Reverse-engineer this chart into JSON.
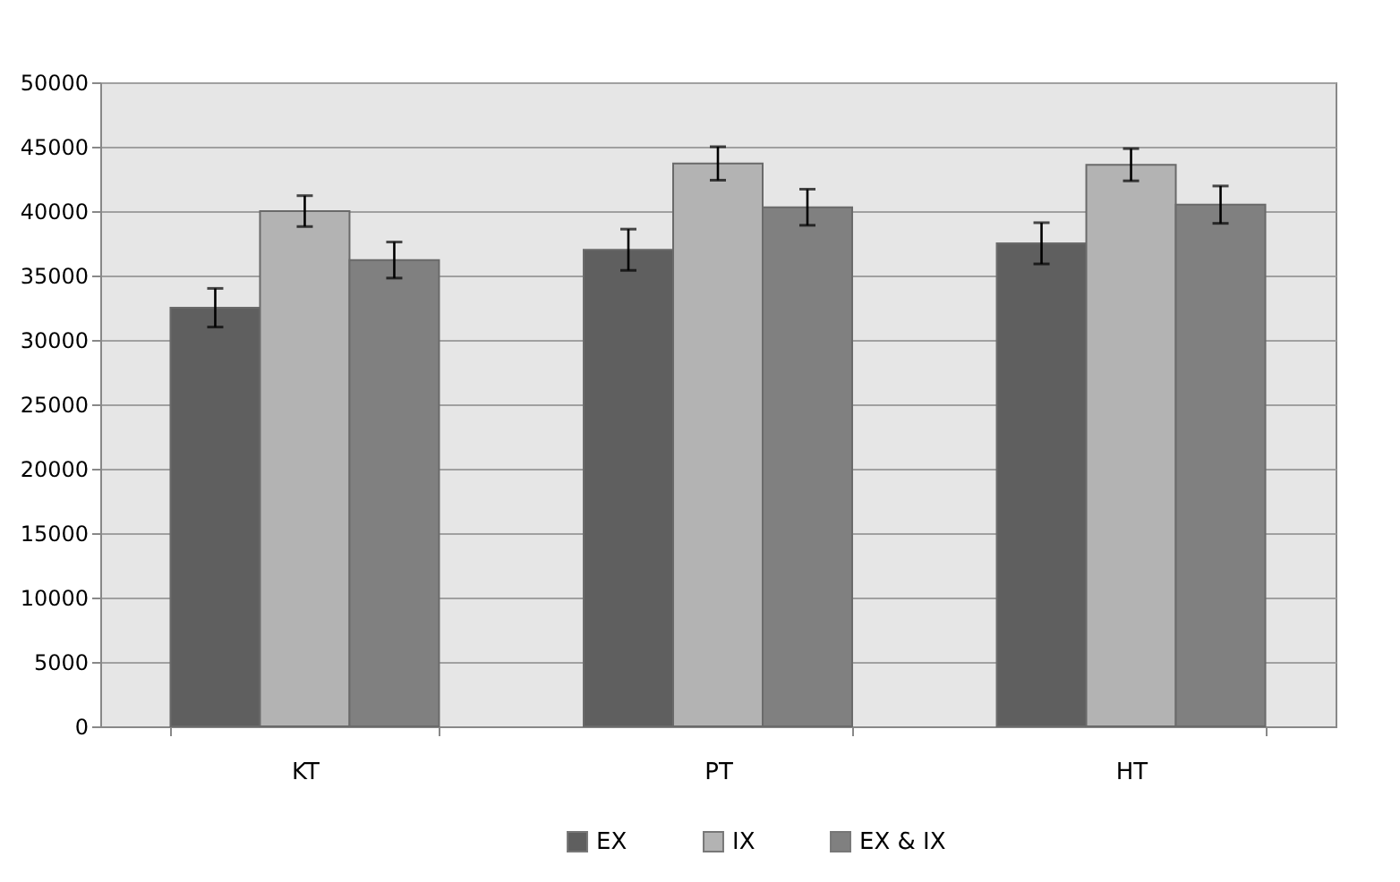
{
  "chart_data": {
    "type": "bar",
    "categories": [
      "KT",
      "PT",
      "HT"
    ],
    "series": [
      {
        "name": "EX",
        "color": "#5f5f5f",
        "values": [
          32500,
          37000,
          37500
        ],
        "errors": [
          1500,
          1600,
          1600
        ]
      },
      {
        "name": "IX",
        "color": "#b3b3b3",
        "values": [
          40000,
          43700,
          43600
        ],
        "errors": [
          1200,
          1300,
          1250
        ]
      },
      {
        "name": "EX & IX",
        "color": "#808080",
        "values": [
          36200,
          40300,
          40500
        ],
        "errors": [
          1400,
          1400,
          1450
        ]
      }
    ],
    "ylim": [
      0,
      50000
    ],
    "yticks": [
      0,
      5000,
      10000,
      15000,
      20000,
      25000,
      30000,
      35000,
      40000,
      45000,
      50000
    ],
    "grid": "y",
    "legend": "bottom"
  }
}
